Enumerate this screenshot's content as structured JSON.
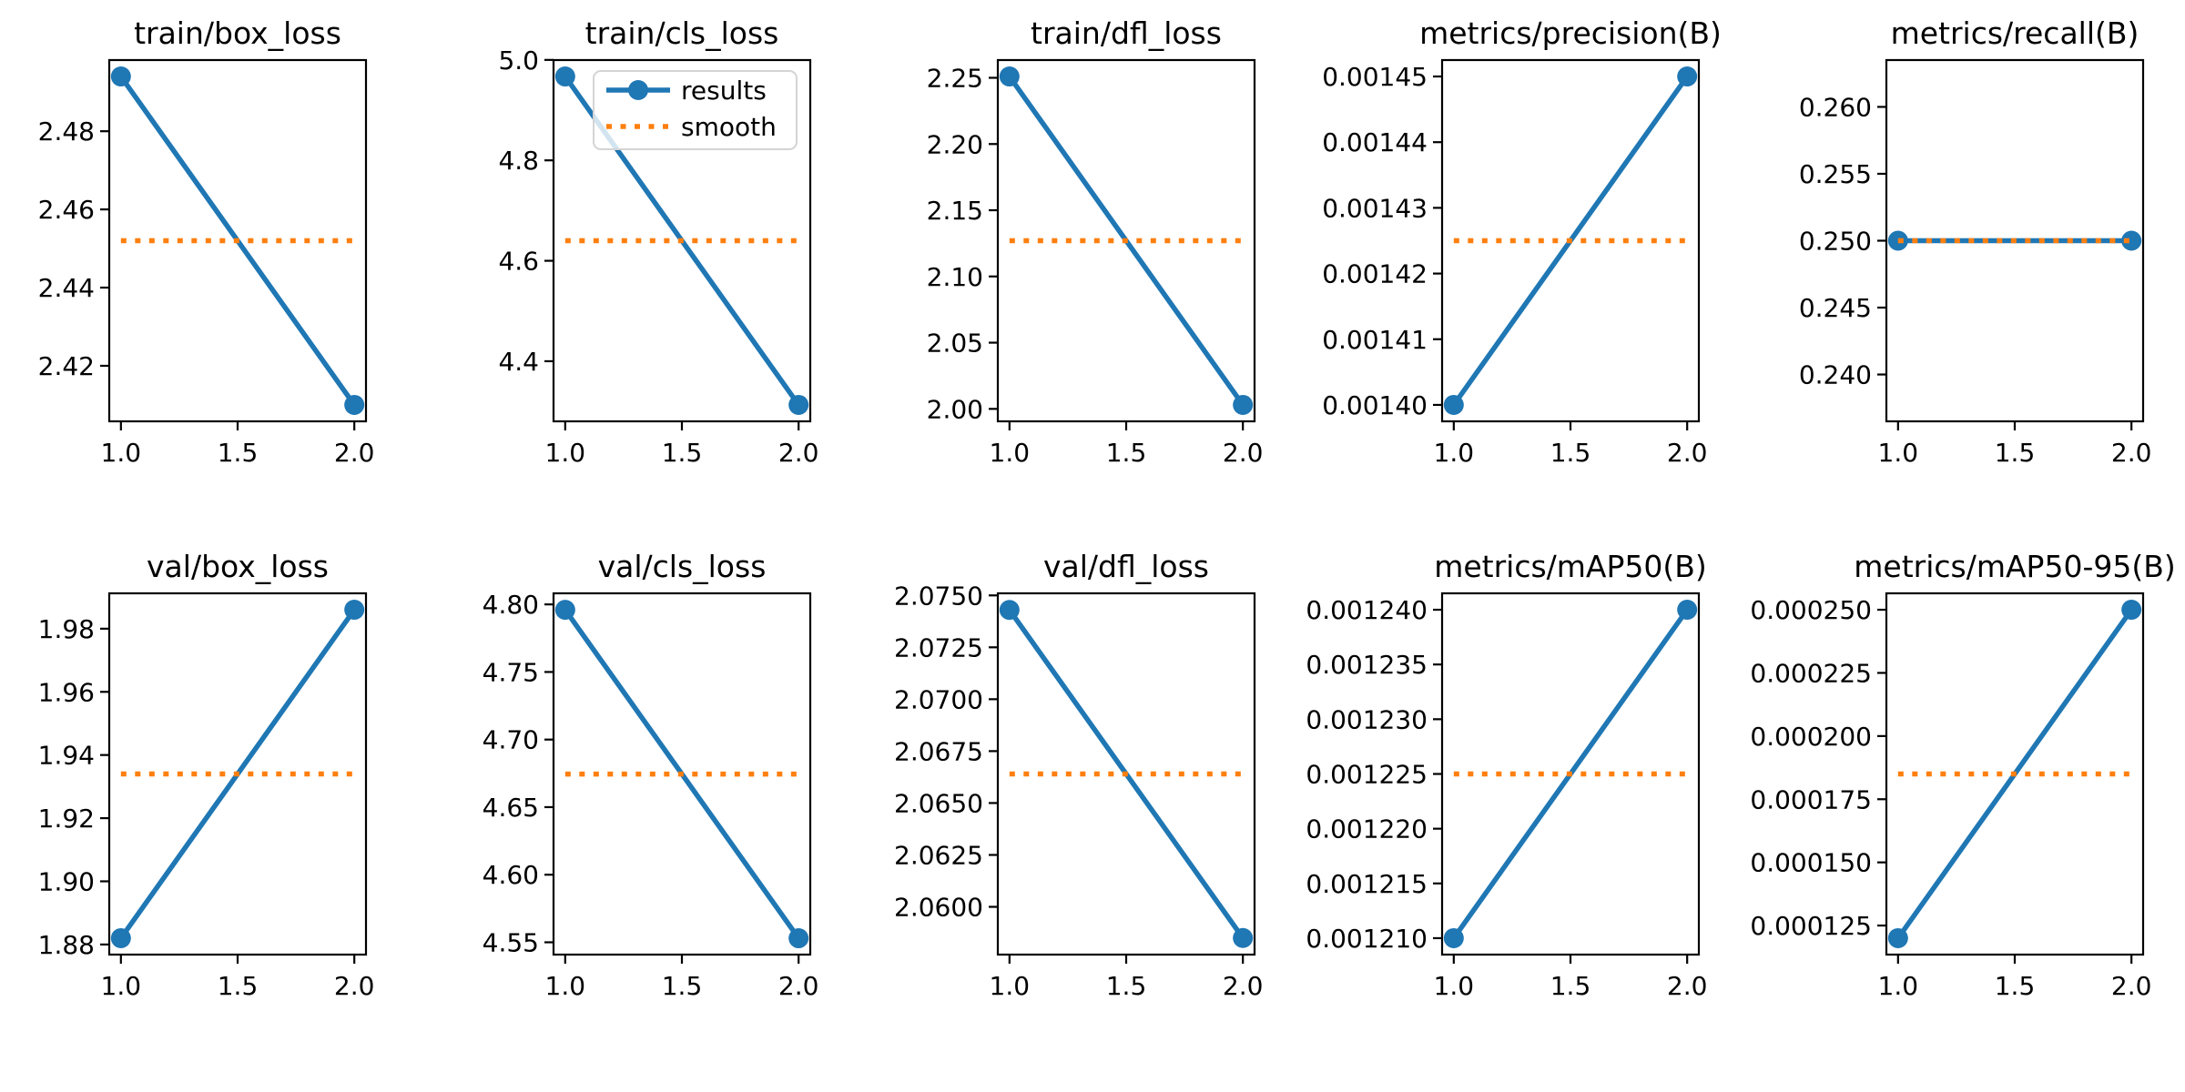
{
  "figure": {
    "background": "#ffffff",
    "colors": {
      "results": "#1f77b4",
      "smooth": "#ff7f0e",
      "frame": "#000000",
      "legend_border": "#d4d4d4",
      "legend_fill": "rgba(255,255,255,0.8)"
    },
    "legend": {
      "entries": [
        "results",
        "smooth"
      ],
      "position": "upper left",
      "host_plot": "train/cls_loss"
    },
    "x": {
      "xlim": [
        0.95,
        2.05
      ],
      "ticks": [
        {
          "value": 1.0,
          "label": "1.0"
        },
        {
          "value": 1.5,
          "label": "1.5"
        },
        {
          "value": 2.0,
          "label": "2.0"
        }
      ]
    },
    "grid": "off"
  },
  "chart_data": [
    {
      "type": "line",
      "title": "train/box_loss",
      "x": [
        1,
        2
      ],
      "series": [
        {
          "name": "results",
          "values": [
            2.494,
            2.41
          ]
        },
        {
          "name": "smooth",
          "values": [
            2.452,
            2.452
          ]
        }
      ],
      "ylim": [
        2.4058,
        2.4982
      ],
      "yticks": [
        {
          "value": 2.42,
          "label": "2.42"
        },
        {
          "value": 2.44,
          "label": "2.44"
        },
        {
          "value": 2.46,
          "label": "2.46"
        },
        {
          "value": 2.48,
          "label": "2.48"
        }
      ],
      "legend": false
    },
    {
      "type": "line",
      "title": "train/cls_loss",
      "x": [
        1,
        2
      ],
      "series": [
        {
          "name": "results",
          "values": [
            4.967,
            4.313
          ]
        },
        {
          "name": "smooth",
          "values": [
            4.64,
            4.64
          ]
        }
      ],
      "ylim": [
        4.2803,
        4.9997
      ],
      "yticks": [
        {
          "value": 4.4,
          "label": "4.4"
        },
        {
          "value": 4.6,
          "label": "4.6"
        },
        {
          "value": 4.8,
          "label": "4.8"
        },
        {
          "value": 5.0,
          "label": "5.0"
        }
      ],
      "legend": true
    },
    {
      "type": "line",
      "title": "train/dfl_loss",
      "x": [
        1,
        2
      ],
      "series": [
        {
          "name": "results",
          "values": [
            2.251,
            2.003
          ]
        },
        {
          "name": "smooth",
          "values": [
            2.127,
            2.127
          ]
        }
      ],
      "ylim": [
        1.9906,
        2.2634
      ],
      "yticks": [
        {
          "value": 2.0,
          "label": "2.00"
        },
        {
          "value": 2.05,
          "label": "2.05"
        },
        {
          "value": 2.1,
          "label": "2.10"
        },
        {
          "value": 2.15,
          "label": "2.15"
        },
        {
          "value": 2.2,
          "label": "2.20"
        },
        {
          "value": 2.25,
          "label": "2.25"
        }
      ],
      "legend": false
    },
    {
      "type": "line",
      "title": "metrics/precision(B)",
      "x": [
        1,
        2
      ],
      "series": [
        {
          "name": "results",
          "values": [
            0.0014,
            0.00145
          ]
        },
        {
          "name": "smooth",
          "values": [
            0.001425,
            0.001425
          ]
        }
      ],
      "ylim": [
        0.0013975,
        0.0014525
      ],
      "yticks": [
        {
          "value": 0.0014,
          "label": "0.00140"
        },
        {
          "value": 0.00141,
          "label": "0.00141"
        },
        {
          "value": 0.00142,
          "label": "0.00142"
        },
        {
          "value": 0.00143,
          "label": "0.00143"
        },
        {
          "value": 0.00144,
          "label": "0.00144"
        },
        {
          "value": 0.00145,
          "label": "0.00145"
        }
      ],
      "legend": false
    },
    {
      "type": "line",
      "title": "metrics/recall(B)",
      "x": [
        1,
        2
      ],
      "series": [
        {
          "name": "results",
          "values": [
            0.25,
            0.25
          ]
        },
        {
          "name": "smooth",
          "values": [
            0.25,
            0.25
          ]
        }
      ],
      "ylim": [
        0.2365,
        0.2635
      ],
      "yticks": [
        {
          "value": 0.24,
          "label": "0.240"
        },
        {
          "value": 0.245,
          "label": "0.245"
        },
        {
          "value": 0.25,
          "label": "0.250"
        },
        {
          "value": 0.255,
          "label": "0.255"
        },
        {
          "value": 0.26,
          "label": "0.260"
        }
      ],
      "legend": false
    },
    {
      "type": "line",
      "title": "val/box_loss",
      "x": [
        1,
        2
      ],
      "series": [
        {
          "name": "results",
          "values": [
            1.882,
            1.986
          ]
        },
        {
          "name": "smooth",
          "values": [
            1.934,
            1.934
          ]
        }
      ],
      "ylim": [
        1.8768,
        1.9912
      ],
      "yticks": [
        {
          "value": 1.88,
          "label": "1.88"
        },
        {
          "value": 1.9,
          "label": "1.90"
        },
        {
          "value": 1.92,
          "label": "1.92"
        },
        {
          "value": 1.94,
          "label": "1.94"
        },
        {
          "value": 1.96,
          "label": "1.96"
        },
        {
          "value": 1.98,
          "label": "1.98"
        }
      ],
      "legend": false
    },
    {
      "type": "line",
      "title": "val/cls_loss",
      "x": [
        1,
        2
      ],
      "series": [
        {
          "name": "results",
          "values": [
            4.796,
            4.553
          ]
        },
        {
          "name": "smooth",
          "values": [
            4.6745,
            4.6745
          ]
        }
      ],
      "ylim": [
        4.5409,
        4.8082
      ],
      "yticks": [
        {
          "value": 4.55,
          "label": "4.55"
        },
        {
          "value": 4.6,
          "label": "4.60"
        },
        {
          "value": 4.65,
          "label": "4.65"
        },
        {
          "value": 4.7,
          "label": "4.70"
        },
        {
          "value": 4.75,
          "label": "4.75"
        },
        {
          "value": 4.8,
          "label": "4.80"
        }
      ],
      "legend": false
    },
    {
      "type": "line",
      "title": "val/dfl_loss",
      "x": [
        1,
        2
      ],
      "series": [
        {
          "name": "results",
          "values": [
            2.0743,
            2.0585
          ]
        },
        {
          "name": "smooth",
          "values": [
            2.0664,
            2.0664
          ]
        }
      ],
      "ylim": [
        2.0577,
        2.0751
      ],
      "yticks": [
        {
          "value": 2.06,
          "label": "2.0600"
        },
        {
          "value": 2.0625,
          "label": "2.0625"
        },
        {
          "value": 2.065,
          "label": "2.0650"
        },
        {
          "value": 2.0675,
          "label": "2.0675"
        },
        {
          "value": 2.07,
          "label": "2.0700"
        },
        {
          "value": 2.0725,
          "label": "2.0725"
        },
        {
          "value": 2.075,
          "label": "2.0750"
        }
      ],
      "legend": false
    },
    {
      "type": "line",
      "title": "metrics/mAP50(B)",
      "x": [
        1,
        2
      ],
      "series": [
        {
          "name": "results",
          "values": [
            0.00121,
            0.00124
          ]
        },
        {
          "name": "smooth",
          "values": [
            0.001225,
            0.001225
          ]
        }
      ],
      "ylim": [
        0.0012085,
        0.0012415
      ],
      "yticks": [
        {
          "value": 0.00121,
          "label": "0.001210"
        },
        {
          "value": 0.001215,
          "label": "0.001215"
        },
        {
          "value": 0.00122,
          "label": "0.001220"
        },
        {
          "value": 0.001225,
          "label": "0.001225"
        },
        {
          "value": 0.00123,
          "label": "0.001230"
        },
        {
          "value": 0.001235,
          "label": "0.001235"
        },
        {
          "value": 0.00124,
          "label": "0.001240"
        }
      ],
      "legend": false
    },
    {
      "type": "line",
      "title": "metrics/mAP50-95(B)",
      "x": [
        1,
        2
      ],
      "series": [
        {
          "name": "results",
          "values": [
            0.00012,
            0.00025
          ]
        },
        {
          "name": "smooth",
          "values": [
            0.000185,
            0.000185
          ]
        }
      ],
      "ylim": [
        0.0001135,
        0.0002565
      ],
      "yticks": [
        {
          "value": 0.000125,
          "label": "0.000125"
        },
        {
          "value": 0.00015,
          "label": "0.000150"
        },
        {
          "value": 0.000175,
          "label": "0.000175"
        },
        {
          "value": 0.0002,
          "label": "0.000200"
        },
        {
          "value": 0.000225,
          "label": "0.000225"
        },
        {
          "value": 0.00025,
          "label": "0.000250"
        }
      ],
      "legend": false
    }
  ]
}
